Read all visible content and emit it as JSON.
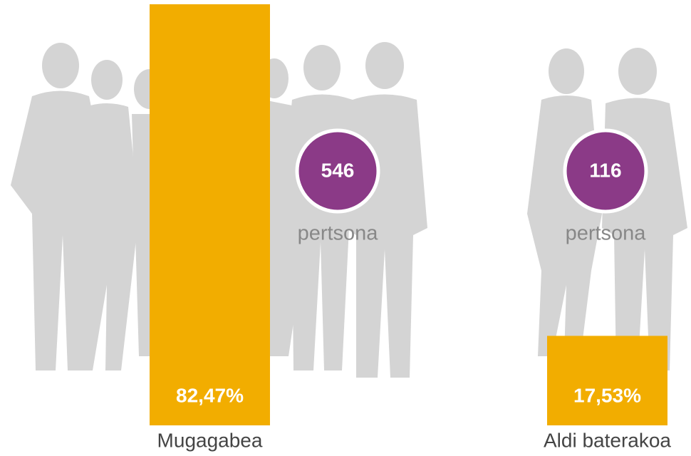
{
  "chart_data": {
    "type": "bar",
    "categories": [
      "Mugagabea",
      "Aldi baterakoa"
    ],
    "values": [
      82.47,
      17.53
    ],
    "value_labels": [
      "82,47%",
      "17,53%"
    ],
    "color": "#f2ad00",
    "counts": [
      546,
      116
    ],
    "count_unit": "pertsona",
    "count_color": "#8b3a87"
  }
}
